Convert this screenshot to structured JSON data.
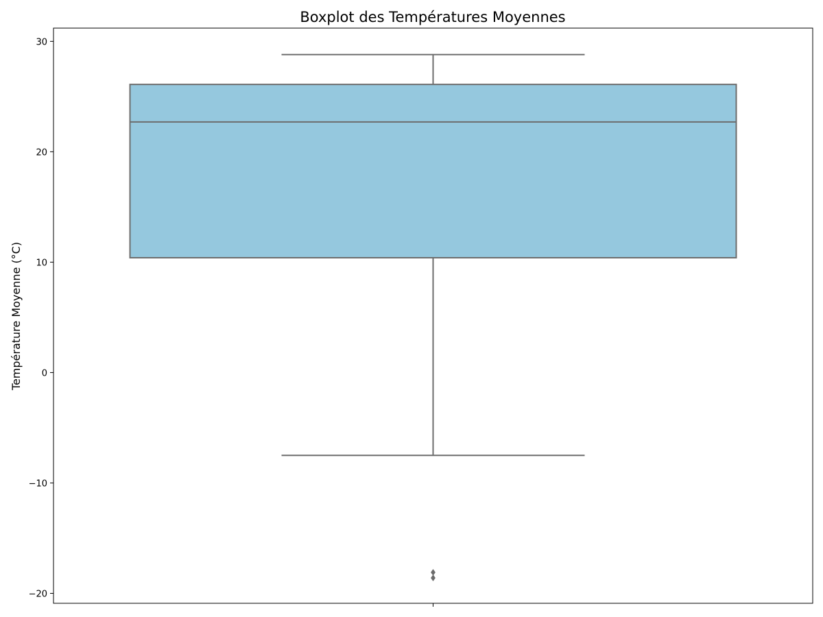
{
  "chart_data": {
    "type": "box",
    "title": "Boxplot des Températures Moyennes",
    "xlabel": "",
    "ylabel": "Température Moyenne (°C)",
    "ylim": [
      -20.9,
      31.2
    ],
    "yticks": [
      30,
      20,
      10,
      0,
      -10,
      -20
    ],
    "ytick_labels": [
      "30",
      "20",
      "10",
      "0",
      "−10",
      "−20"
    ],
    "grid": false,
    "box": {
      "whisker_low": -7.5,
      "q1": 10.4,
      "median": 22.7,
      "q3": 26.1,
      "whisker_high": 28.8,
      "outliers": [
        -18.1,
        -18.6
      ]
    },
    "colors": {
      "box_fill": "#95c8de",
      "box_edge": "#6c6c6c"
    }
  }
}
